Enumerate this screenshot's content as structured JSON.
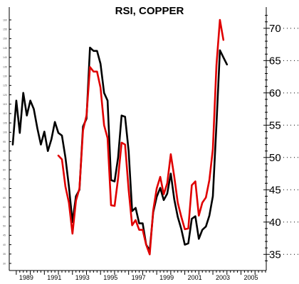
{
  "chart_data": {
    "type": "line",
    "title": "RSI, COPPER",
    "xlabel": "",
    "ylabel": "",
    "xlim": [
      1988.5,
      2006.8
    ],
    "ylim": [
      32.5,
      73.5
    ],
    "x_ticks": [
      1989,
      1991,
      1993,
      1995,
      1997,
      1999,
      2001,
      2003,
      2005
    ],
    "right_y_ticks": [
      35,
      40,
      45,
      50,
      55,
      60,
      65,
      70
    ],
    "left_y_ticks": [
      30,
      35,
      40,
      45,
      50,
      55,
      60,
      65,
      70,
      75,
      80,
      85,
      90,
      95,
      100,
      105,
      110,
      115,
      120,
      125,
      130,
      135,
      140,
      145,
      150,
      155,
      160
    ],
    "grid": false,
    "legend": "none",
    "series": [
      {
        "color": "#000000",
        "x": [
          1988.75,
          1989.0,
          1989.25,
          1989.5,
          1989.75,
          1990.0,
          1990.25,
          1990.5,
          1990.75,
          1991.0,
          1991.25,
          1991.5,
          1991.75,
          1992.0,
          1992.25,
          1992.5,
          1992.75,
          1993.0,
          1993.25,
          1993.5,
          1993.75,
          1994.0,
          1994.25,
          1994.5,
          1994.75,
          1995.0,
          1995.25,
          1995.5,
          1995.75,
          1996.0,
          1996.25,
          1996.5,
          1996.75,
          1997.0,
          1997.25,
          1997.5,
          1997.75,
          1998.0,
          1998.25,
          1998.5,
          1998.75,
          1999.0,
          1999.25,
          1999.5,
          1999.75,
          2000.0,
          2000.25,
          2000.5,
          2000.75,
          2001.0,
          2001.25,
          2001.5,
          2001.75,
          2002.0,
          2002.25,
          2002.5,
          2002.75,
          2003.0,
          2003.25,
          2003.5,
          2003.75,
          2004.0
        ],
        "values": [
          52.0,
          58.8,
          53.8,
          60.0,
          56.5,
          58.8,
          57.5,
          54.5,
          52.0,
          54.0,
          51.0,
          52.8,
          55.5,
          53.8,
          53.4,
          50.0,
          45.5,
          40.0,
          44.0,
          45.0,
          54.8,
          56.0,
          67.0,
          66.5,
          66.5,
          64.5,
          60.0,
          58.8,
          46.5,
          46.3,
          50.0,
          56.5,
          56.3,
          51.0,
          41.7,
          42.2,
          39.8,
          39.8,
          36.5,
          35.6,
          41.5,
          43.9,
          45.3,
          43.4,
          44.4,
          47.5,
          43.5,
          40.8,
          38.9,
          36.5,
          36.7,
          40.5,
          40.9,
          37.4,
          38.8,
          39.3,
          41.0,
          44.0,
          55.0,
          66.6,
          65.5,
          64.4
        ]
      },
      {
        "color": "#e00000",
        "x": [
          1992.0,
          1992.25,
          1992.5,
          1992.75,
          1993.0,
          1993.25,
          1993.5,
          1993.75,
          1994.0,
          1994.25,
          1994.5,
          1994.75,
          1995.0,
          1995.25,
          1995.5,
          1995.75,
          1996.0,
          1996.25,
          1996.5,
          1996.75,
          1997.0,
          1997.25,
          1997.5,
          1997.75,
          1998.0,
          1998.25,
          1998.5,
          1998.75,
          1999.0,
          1999.25,
          1999.5,
          1999.75,
          2000.0,
          2000.25,
          2000.5,
          2000.75,
          2001.0,
          2001.25,
          2001.5,
          2001.75,
          2002.0,
          2002.25,
          2002.5,
          2002.75,
          2003.0,
          2003.25,
          2003.5,
          2003.75
        ],
        "values": [
          50.3,
          49.7,
          45.5,
          43.0,
          38.2,
          43.3,
          45.2,
          54.2,
          56.5,
          64.0,
          63.3,
          63.3,
          60.8,
          55.0,
          53.0,
          42.6,
          42.5,
          46.8,
          52.3,
          52.0,
          45.0,
          39.5,
          40.3,
          38.8,
          38.8,
          36.5,
          35.0,
          41.8,
          45.2,
          47.0,
          44.3,
          46.0,
          50.5,
          47.0,
          43.0,
          40.8,
          38.9,
          39.0,
          45.7,
          46.3,
          41.0,
          43.0,
          43.8,
          46.5,
          51.3,
          64.2,
          71.3,
          68.2
        ]
      }
    ]
  }
}
